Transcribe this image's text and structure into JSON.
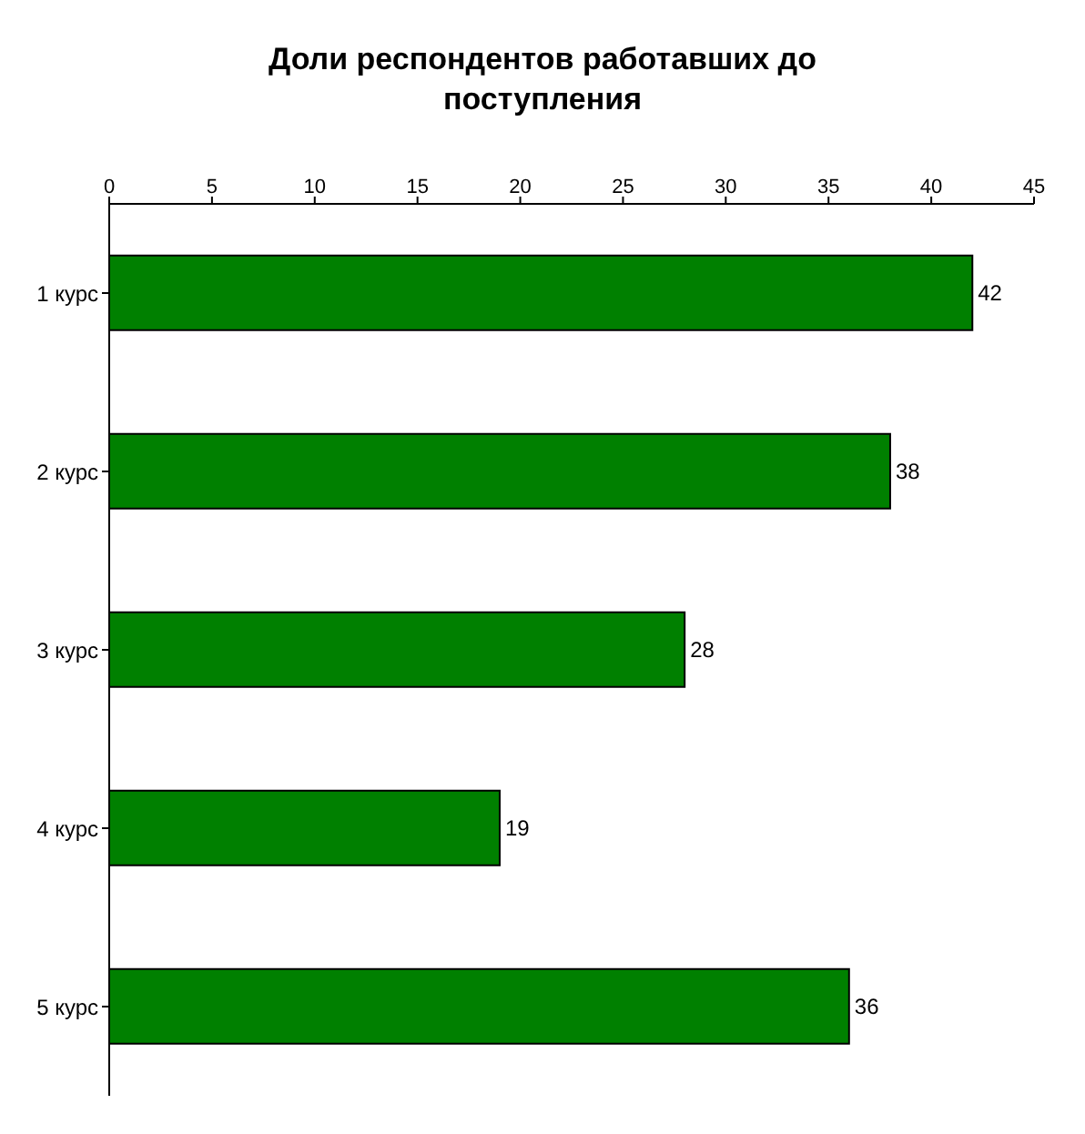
{
  "chart_data": {
    "type": "bar",
    "orientation": "horizontal",
    "title": "Доли респондентов работавших до поступления",
    "categories": [
      "1 курс",
      "2 курс",
      "3 курс",
      "4 курс",
      "5 курс"
    ],
    "values": [
      42,
      38,
      28,
      19,
      36
    ],
    "color": "#008000",
    "xlim": [
      0,
      45
    ],
    "xticks": [
      0,
      5,
      10,
      15,
      20,
      25,
      30,
      35,
      40,
      45
    ],
    "data_labels": true
  }
}
